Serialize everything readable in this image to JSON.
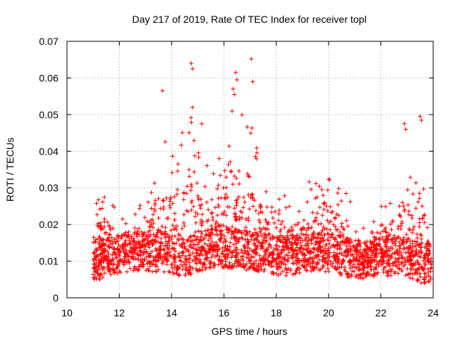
{
  "chart_data": {
    "type": "scatter",
    "title": "Day 217 of 2019, Rate Of TEC Index for receiver topl",
    "xlabel": "GPS time / hours",
    "ylabel": "ROTI / TECUs",
    "xlim": [
      10,
      24
    ],
    "ylim": [
      0,
      0.07
    ],
    "xticks": [
      10,
      12,
      14,
      16,
      18,
      20,
      22,
      24
    ],
    "xtick_labels": [
      "10",
      "12",
      "14",
      "16",
      "18",
      "20",
      "22",
      "24"
    ],
    "yticks": [
      0,
      0.01,
      0.02,
      0.03,
      0.04,
      0.05,
      0.06,
      0.07
    ],
    "ytick_labels": [
      "0",
      "0.01",
      "0.02",
      "0.03",
      "0.04",
      "0.05",
      "0.06",
      "0.07"
    ],
    "grid": true,
    "marker": "+",
    "color": "#ff0000",
    "envelope": {
      "x": [
        11.0,
        11.5,
        12.0,
        12.5,
        13.0,
        13.5,
        13.7,
        14.0,
        14.3,
        14.7,
        15.0,
        15.5,
        16.0,
        16.2,
        16.5,
        17.0,
        17.2,
        17.5,
        18.0,
        18.5,
        19.0,
        19.5,
        20.0,
        20.5,
        20.8,
        21.0,
        21.5,
        22.0,
        22.5,
        22.9,
        23.2,
        23.5,
        23.8,
        23.95
      ],
      "base": [
        0.008,
        0.008,
        0.009,
        0.01,
        0.01,
        0.01,
        0.01,
        0.009,
        0.009,
        0.009,
        0.01,
        0.011,
        0.011,
        0.011,
        0.011,
        0.01,
        0.01,
        0.01,
        0.009,
        0.009,
        0.01,
        0.01,
        0.01,
        0.009,
        0.008,
        0.008,
        0.008,
        0.009,
        0.009,
        0.009,
        0.008,
        0.007,
        0.007,
        0.007
      ],
      "top": [
        0.028,
        0.03,
        0.022,
        0.025,
        0.026,
        0.04,
        0.045,
        0.04,
        0.045,
        0.055,
        0.04,
        0.035,
        0.05,
        0.055,
        0.052,
        0.05,
        0.046,
        0.032,
        0.03,
        0.028,
        0.03,
        0.034,
        0.038,
        0.03,
        0.029,
        0.022,
        0.018,
        0.025,
        0.03,
        0.042,
        0.032,
        0.045,
        0.028,
        0.014
      ]
    },
    "outliers": [
      {
        "x": 14.75,
        "y": 0.064
      },
      {
        "x": 14.8,
        "y": 0.0625
      },
      {
        "x": 17.05,
        "y": 0.0652
      },
      {
        "x": 16.45,
        "y": 0.0615
      },
      {
        "x": 16.5,
        "y": 0.0595
      },
      {
        "x": 17.1,
        "y": 0.059
      },
      {
        "x": 13.65,
        "y": 0.0565
      },
      {
        "x": 16.35,
        "y": 0.057
      },
      {
        "x": 16.4,
        "y": 0.0555
      },
      {
        "x": 23.5,
        "y": 0.0495
      },
      {
        "x": 23.55,
        "y": 0.0485
      },
      {
        "x": 22.9,
        "y": 0.0475
      },
      {
        "x": 22.95,
        "y": 0.046
      },
      {
        "x": 14.8,
        "y": 0.052
      },
      {
        "x": 15.15,
        "y": 0.0475
      }
    ]
  }
}
